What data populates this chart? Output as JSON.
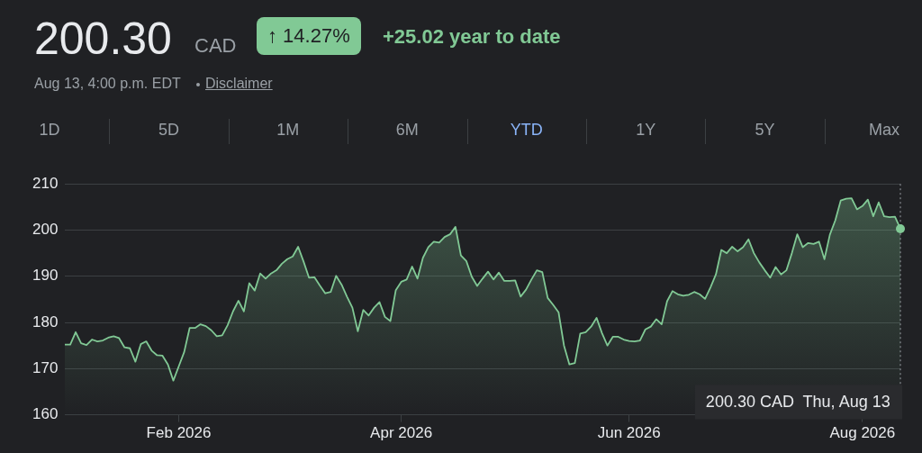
{
  "chart_data": {
    "type": "area",
    "title": "200.30",
    "subtitle": "Aug 13, 4:00 p.m. EDT",
    "annotations": [
      "CAD",
      "↑ 14.27%",
      "+25.02 year to date",
      "Disclaimer",
      "1D",
      "5D",
      "1M",
      "6M",
      "YTD",
      "1Y",
      "5Y",
      "Max",
      "200.30 CAD  Thu, Aug 13"
    ],
    "categories": [
      null,
      null,
      null,
      null,
      null,
      null,
      null,
      null,
      null,
      null,
      null,
      null,
      null,
      null,
      null,
      null,
      null,
      null,
      null,
      null,
      null,
      "Feb 2026",
      null,
      null,
      null,
      null,
      null,
      null,
      null,
      null,
      null,
      null,
      null,
      null,
      null,
      null,
      null,
      null,
      null,
      null,
      null,
      null,
      null,
      null,
      null,
      null,
      null,
      null,
      null,
      null,
      null,
      null,
      null,
      null,
      null,
      null,
      null,
      null,
      null,
      null,
      null,
      null,
      "Apr 2026",
      null,
      null,
      null,
      null,
      null,
      null,
      null,
      null,
      null,
      null,
      null,
      null,
      null,
      null,
      null,
      null,
      null,
      null,
      null,
      null,
      null,
      null,
      null,
      null,
      null,
      null,
      null,
      null,
      null,
      null,
      null,
      null,
      null,
      null,
      null,
      null,
      null,
      null,
      null,
      null,
      null,
      "Jun 2026",
      null,
      null,
      null,
      null,
      null,
      null,
      null,
      null,
      null,
      null,
      null,
      null,
      null,
      null,
      null,
      null,
      null,
      null,
      null,
      null,
      null,
      null,
      null,
      null,
      null,
      null,
      null,
      null,
      null,
      null,
      null,
      null,
      null,
      null,
      null,
      null,
      null,
      null,
      null,
      null,
      null,
      null,
      "Aug 2026",
      null,
      null,
      null,
      null,
      null,
      null,
      null
    ],
    "series": [
      {
        "color": "#81c995",
        "values": [
          175.2,
          175.2,
          177.9,
          175.5,
          175.1,
          176.3,
          175.9,
          176.1,
          176.7,
          177.0,
          176.6,
          174.6,
          174.4,
          171.5,
          175.3,
          175.9,
          173.9,
          172.9,
          172.8,
          170.9,
          167.4,
          170.5,
          173.6,
          178.8,
          178.8,
          179.6,
          179.2,
          178.3,
          177.0,
          177.2,
          179.4,
          182.4,
          184.7,
          182.4,
          188.5,
          186.9,
          190.6,
          189.5,
          190.6,
          191.3,
          192.7,
          193.7,
          194.3,
          196.4,
          193.2,
          189.7,
          189.8,
          188.0,
          186.3,
          186.6,
          190.1,
          188.2,
          185.6,
          183.2,
          178.1,
          182.7,
          181.5,
          183.2,
          184.4,
          181.2,
          180.3,
          187.0,
          188.8,
          189.3,
          192.1,
          189.5,
          194.0,
          196.3,
          197.5,
          197.3,
          198.5,
          199.1,
          200.7,
          194.5,
          193.3,
          189.9,
          187.9,
          189.5,
          191.0,
          189.3,
          190.8,
          189.0,
          189.0,
          189.1,
          185.6,
          187.1,
          189.3,
          191.3,
          190.9,
          185.3,
          183.8,
          182.2,
          175.0,
          170.9,
          171.2,
          177.6,
          177.9,
          179.1,
          181.0,
          177.7,
          175.0,
          176.9,
          176.9,
          176.3,
          176.0,
          175.9,
          176.1,
          178.5,
          179.1,
          180.7,
          179.6,
          184.6,
          186.8,
          186.1,
          185.8,
          186.0,
          186.6,
          186.1,
          185.1,
          187.6,
          190.4,
          195.7,
          195.0,
          196.4,
          195.4,
          196.3,
          198.0,
          195.0,
          193.0,
          191.3,
          189.7,
          192.0,
          190.4,
          191.3,
          195.0,
          199.1,
          196.3,
          197.2,
          197.0,
          197.5,
          193.7,
          199.0,
          202.1,
          206.4,
          206.8,
          206.9,
          204.5,
          205.2,
          206.6,
          203.0,
          206.0,
          203.0,
          202.8,
          202.9,
          200.3
        ]
      }
    ],
    "ylim": [
      160,
      210
    ],
    "yticks": [
      160,
      170,
      180,
      190,
      200,
      210
    ],
    "grid": "y",
    "legend": false,
    "marker": "none"
  }
}
